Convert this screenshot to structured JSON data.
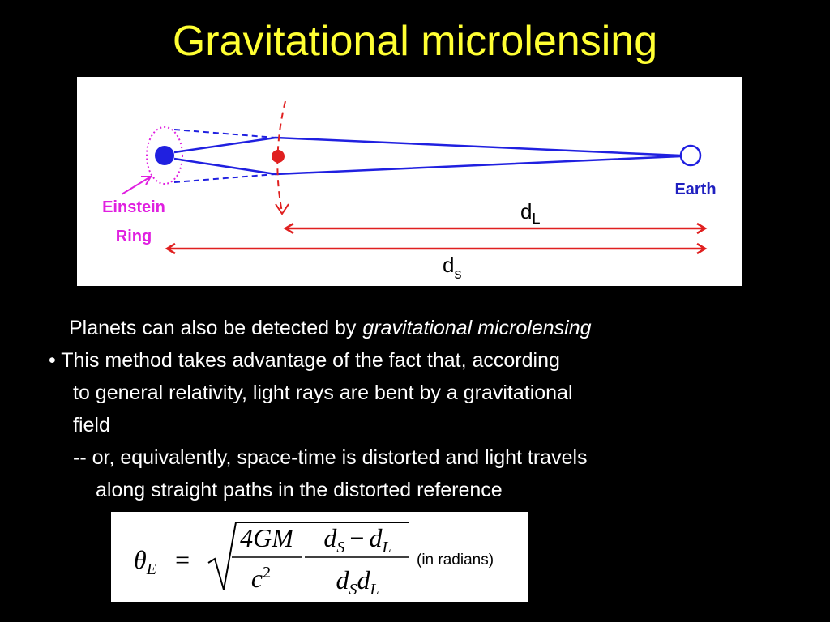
{
  "title": "Gravitational microlensing",
  "diagram": {
    "ring_label_1": "Einstein",
    "ring_label_2": "Ring",
    "earth_label": "Earth",
    "dl": "d",
    "dl_sub": "L",
    "ds": "d",
    "ds_sub": "s"
  },
  "body": {
    "line_1": "Planets can also be detected by",
    "line_1_italic": "gravitational microlensing",
    "line_2": "• This method takes advantage of the fact that, according",
    "line_3": "to general relativity, light rays are bent by a gravitational",
    "line_4": "field",
    "line_5": "-- or, equivalently, space-time is distorted and light travels",
    "line_6": "along straight paths in the distorted reference"
  },
  "formula": {
    "theta": "θ",
    "theta_sub": "E",
    "equals": "=",
    "num1": "4GM",
    "den1": "c",
    "den1_sup": "2",
    "num2": [
      "d",
      "S",
      "−",
      "d",
      "L"
    ],
    "den2": [
      "d",
      "S",
      "d",
      "L"
    ],
    "unit": "(in radians)"
  }
}
